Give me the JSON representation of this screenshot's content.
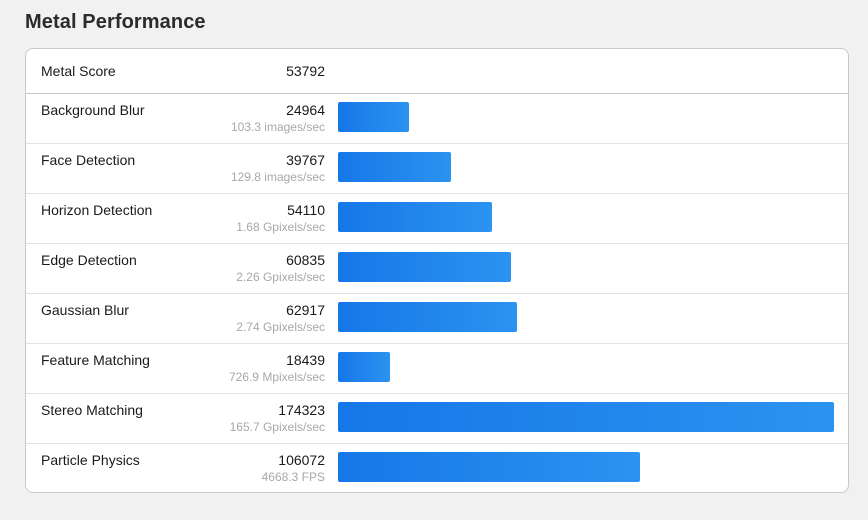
{
  "section_title": "Metal Performance",
  "metal_score": {
    "label": "Metal Score",
    "value": "53792"
  },
  "bar_color": "#1d82ec",
  "max_score": 174323,
  "workloads": [
    {
      "name": "Background Blur",
      "score": "24964",
      "rate": "103.3 images/sec",
      "score_num": 24964
    },
    {
      "name": "Face Detection",
      "score": "39767",
      "rate": "129.8 images/sec",
      "score_num": 39767
    },
    {
      "name": "Horizon Detection",
      "score": "54110",
      "rate": "1.68 Gpixels/sec",
      "score_num": 54110
    },
    {
      "name": "Edge Detection",
      "score": "60835",
      "rate": "2.26 Gpixels/sec",
      "score_num": 60835
    },
    {
      "name": "Gaussian Blur",
      "score": "62917",
      "rate": "2.74 Gpixels/sec",
      "score_num": 62917
    },
    {
      "name": "Feature Matching",
      "score": "18439",
      "rate": "726.9 Mpixels/sec",
      "score_num": 18439
    },
    {
      "name": "Stereo Matching",
      "score": "174323",
      "rate": "165.7 Gpixels/sec",
      "score_num": 174323
    },
    {
      "name": "Particle Physics",
      "score": "106072",
      "rate": "4668.3 FPS",
      "score_num": 106072
    }
  ]
}
